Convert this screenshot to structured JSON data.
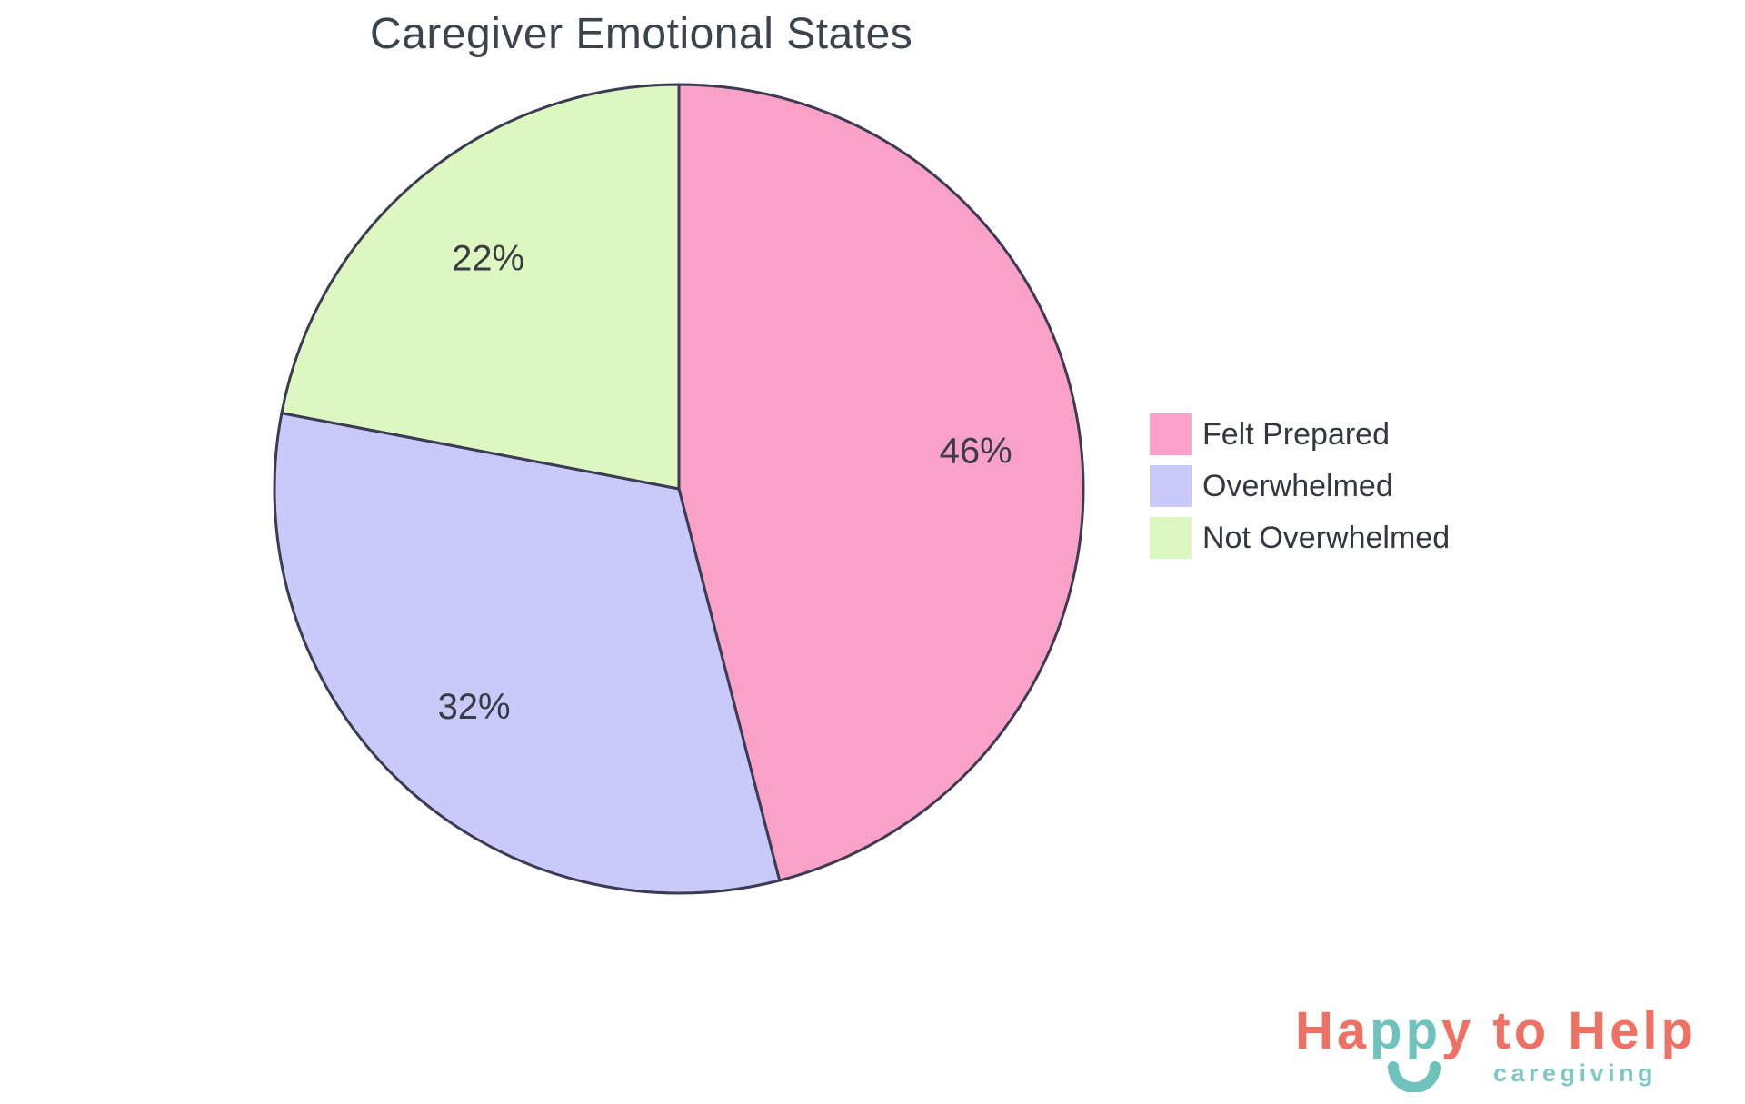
{
  "chart_data": {
    "type": "pie",
    "title": "Caregiver Emotional States",
    "labels": [
      "Felt Prepared",
      "Overwhelmed",
      "Not Overwhelmed"
    ],
    "values": [
      46,
      32,
      22
    ],
    "percent_labels": [
      "46%",
      "32%",
      "22%"
    ],
    "colors": [
      "#F9A1C7",
      "#C9CAF9",
      "#DDF7C0"
    ],
    "outline_color": "#3C3B54",
    "outline_width": 3,
    "slice_label_color": "#3B3B45",
    "start_angle": "top",
    "direction": "clockwise",
    "legend_position": "right",
    "legend_text_color": "#35363F"
  },
  "branding": {
    "happy_ha": "Ha",
    "happy_pp": "pp",
    "happy_rest": "y to Help",
    "subtitle": "caregiving",
    "coral": "#EE7164",
    "teal": "#6EC4BD",
    "subtitle_color": "#7FC8C0"
  }
}
